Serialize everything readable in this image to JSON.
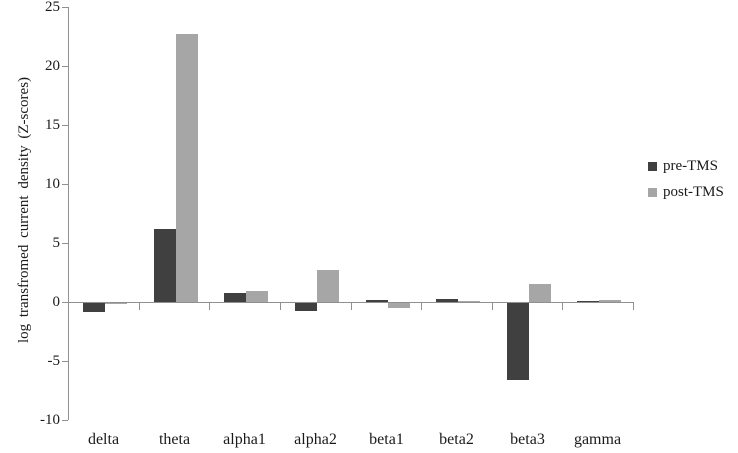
{
  "figure": {
    "background": "#ffffff",
    "axis_color": "#909090",
    "text_color": "#1a1a1a"
  },
  "chart_data": {
    "type": "bar",
    "title": "",
    "xlabel": "",
    "ylabel": "log transfromed current density (Z-scores)",
    "categories": [
      "delta",
      "theta",
      "alpha1",
      "alpha2",
      "beta1",
      "beta2",
      "beta3",
      "gamma"
    ],
    "series": [
      {
        "name": "pre-TMS",
        "color": "#404040",
        "values": [
          -0.8,
          6.2,
          0.8,
          -0.7,
          0.2,
          0.25,
          -6.5,
          0.1
        ]
      },
      {
        "name": "post-TMS",
        "color": "#a6a6a6",
        "values": [
          -0.1,
          22.7,
          0.9,
          2.7,
          -0.4,
          0.1,
          1.5,
          0.2
        ]
      }
    ],
    "ylim": [
      -10,
      25
    ],
    "ytick_step": 5,
    "ytick_labels": [
      "25",
      "20",
      "15",
      "10",
      "5",
      "0",
      "-5",
      "-10"
    ],
    "grid": false,
    "legend_position": "right"
  }
}
